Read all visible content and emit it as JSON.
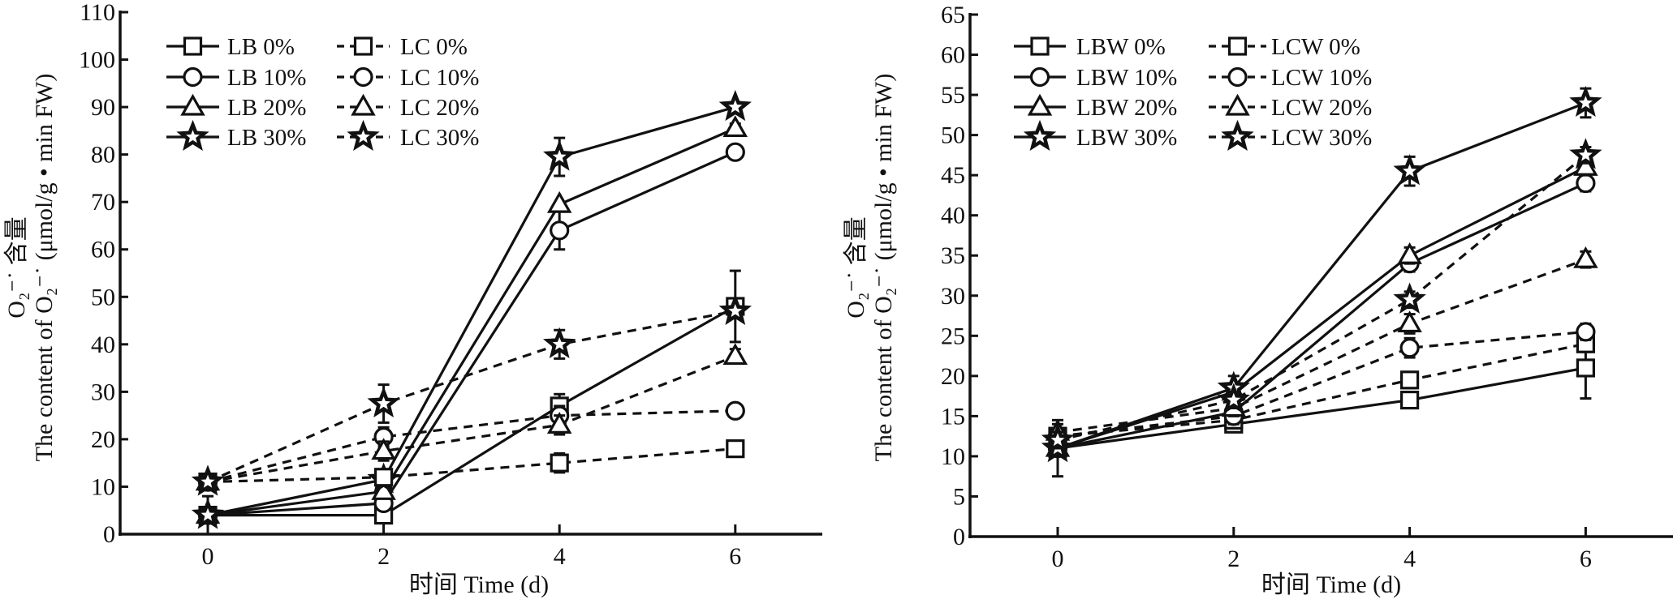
{
  "chart_data": [
    {
      "type": "line",
      "title": "",
      "xlabel": "时间 Time (d)",
      "ylabel_line1": "O₂⁻˙ 含量",
      "ylabel_line2": "The content of O₂⁻˙ (μmol/g • min FW)",
      "xlim": [
        -1,
        7
      ],
      "ylim": [
        0,
        110
      ],
      "x_ticks": [
        0,
        2,
        4,
        6
      ],
      "x_tick_labels": [
        "0",
        "2",
        "4",
        "6"
      ],
      "y_ticks": [
        0,
        10,
        20,
        30,
        40,
        50,
        60,
        70,
        80,
        90,
        100,
        110
      ],
      "y_tick_labels": [
        "0",
        "10",
        "20",
        "30",
        "40",
        "50",
        "60",
        "70",
        "80",
        "90",
        "100",
        "110"
      ],
      "grid": false,
      "legend_position": "top-left",
      "x": [
        0,
        2,
        4,
        6
      ],
      "series": [
        {
          "name": "LB 0%",
          "marker": "square",
          "style": "solid",
          "values": [
            4,
            4,
            27,
            48
          ],
          "errors": [
            0,
            0,
            2.5,
            7.5
          ]
        },
        {
          "name": "LB 10%",
          "marker": "circle",
          "style": "solid",
          "values": [
            4,
            6.5,
            64,
            80.5
          ],
          "errors": [
            0,
            0,
            4,
            0.5
          ]
        },
        {
          "name": "LB 20%",
          "marker": "triangle",
          "style": "solid",
          "values": [
            4,
            9,
            69.5,
            85.5
          ],
          "errors": [
            0,
            0,
            0,
            1
          ]
        },
        {
          "name": "LB 30%",
          "marker": "star",
          "style": "solid",
          "values": [
            4,
            11.5,
            79.5,
            90
          ],
          "errors": [
            4,
            0,
            4,
            1
          ]
        },
        {
          "name": "LC 0%",
          "marker": "square",
          "style": "dashed",
          "values": [
            11,
            12,
            15,
            18
          ],
          "errors": [
            0,
            0,
            2,
            0.5
          ]
        },
        {
          "name": "LC 10%",
          "marker": "circle",
          "style": "dashed",
          "values": [
            11,
            20.5,
            25,
            26
          ],
          "errors": [
            0,
            2,
            2,
            0.5
          ]
        },
        {
          "name": "LC 20%",
          "marker": "triangle",
          "style": "dashed",
          "values": [
            11,
            17.5,
            23,
            37.5
          ],
          "errors": [
            0,
            2,
            2,
            1.5
          ]
        },
        {
          "name": "LC 30%",
          "marker": "star",
          "style": "dashed",
          "values": [
            11,
            27.5,
            40,
            47
          ],
          "errors": [
            1,
            4,
            3,
            0
          ]
        }
      ]
    },
    {
      "type": "line",
      "title": "",
      "xlabel": "时间 Time (d)",
      "ylabel_line1": "O₂⁻˙ 含量",
      "ylabel_line2": "The content of O₂⁻˙ (μmol/g • min FW)",
      "xlim": [
        -1,
        7
      ],
      "ylim": [
        0,
        65
      ],
      "x_ticks": [
        0,
        2,
        4,
        6
      ],
      "x_tick_labels": [
        "0",
        "2",
        "4",
        "6"
      ],
      "y_ticks": [
        0,
        5,
        10,
        15,
        20,
        25,
        30,
        35,
        40,
        45,
        50,
        55,
        60,
        65
      ],
      "y_tick_labels": [
        "0",
        "5",
        "10",
        "15",
        "20",
        "25",
        "30",
        "35",
        "40",
        "45",
        "50",
        "55",
        "60",
        "65"
      ],
      "grid": false,
      "legend_position": "top-left",
      "x": [
        0,
        2,
        4,
        6
      ],
      "series": [
        {
          "name": "LBW 0%",
          "marker": "square",
          "style": "solid",
          "values": [
            11,
            14,
            17,
            21
          ],
          "errors": [
            3.5,
            0.7,
            0.5,
            3.8
          ]
        },
        {
          "name": "LBW 10%",
          "marker": "circle",
          "style": "solid",
          "values": [
            11,
            15.5,
            34,
            44
          ],
          "errors": [
            0,
            1,
            1,
            1
          ]
        },
        {
          "name": "LBW 20%",
          "marker": "triangle",
          "style": "solid",
          "values": [
            11,
            18,
            35,
            46
          ],
          "errors": [
            0,
            1,
            1,
            1
          ]
        },
        {
          "name": "LBW 30%",
          "marker": "star",
          "style": "solid",
          "values": [
            11,
            18.5,
            45.5,
            54
          ],
          "errors": [
            0,
            1.5,
            1.8,
            1.8
          ]
        },
        {
          "name": "LCW 0%",
          "marker": "square",
          "style": "dashed",
          "values": [
            12.5,
            14.5,
            19.5,
            24
          ],
          "errors": [
            1,
            1,
            1,
            1
          ]
        },
        {
          "name": "LCW 10%",
          "marker": "circle",
          "style": "dashed",
          "values": [
            12.5,
            15,
            23.5,
            25.5
          ],
          "errors": [
            1,
            1,
            1.2,
            1
          ]
        },
        {
          "name": "LCW 20%",
          "marker": "triangle",
          "style": "dashed",
          "values": [
            13,
            16,
            26.5,
            34.5
          ],
          "errors": [
            1,
            1,
            1.2,
            1
          ]
        },
        {
          "name": "LCW 30%",
          "marker": "star",
          "style": "dashed",
          "values": [
            12,
            17,
            29.5,
            47.5
          ],
          "errors": [
            1,
            1,
            1,
            1
          ]
        }
      ]
    }
  ]
}
